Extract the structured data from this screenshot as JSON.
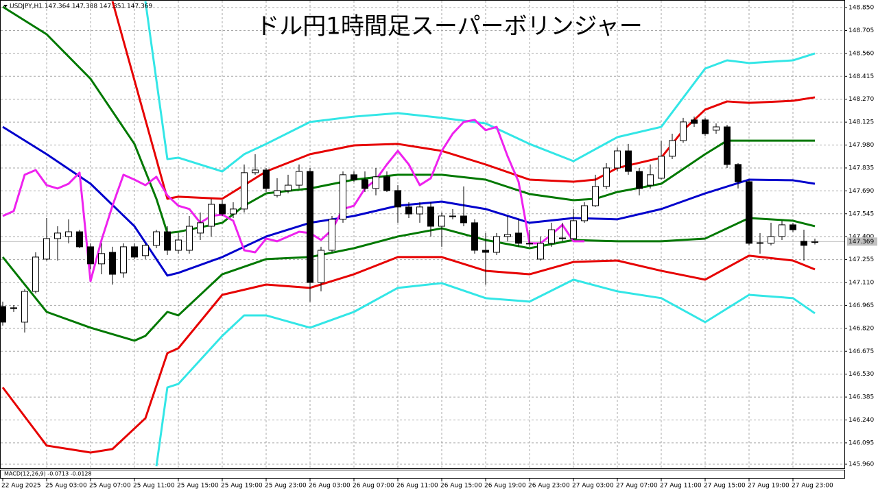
{
  "chart_data": {
    "type": "candlestick",
    "title": "ドル円1時間足スーパーボリンジャー",
    "header": "USDJPY,H1  147.364 147.388 147.351 147.369",
    "indicator_label": "MACD(12,26,9) -0.0713 -0.0128",
    "ylim": [
      145.934,
      148.898
    ],
    "yticks": [
      {
        "value": 148.85,
        "label": "148.850"
      },
      {
        "value": 148.705,
        "label": "148.705"
      },
      {
        "value": 148.56,
        "label": "148.560"
      },
      {
        "value": 148.415,
        "label": "148.415"
      },
      {
        "value": 148.27,
        "label": "148.270"
      },
      {
        "value": 148.125,
        "label": "148.125"
      },
      {
        "value": 147.98,
        "label": "147.980"
      },
      {
        "value": 147.835,
        "label": "147.835"
      },
      {
        "value": 147.69,
        "label": "147.690"
      },
      {
        "value": 147.545,
        "label": "147.545"
      },
      {
        "value": 147.4,
        "label": "147.400"
      },
      {
        "value": 147.255,
        "label": "147.255"
      },
      {
        "value": 147.11,
        "label": "147.110"
      },
      {
        "value": 146.965,
        "label": "146.965"
      },
      {
        "value": 146.82,
        "label": "146.820"
      },
      {
        "value": 146.675,
        "label": "146.675"
      },
      {
        "value": 146.53,
        "label": "146.530"
      },
      {
        "value": 146.385,
        "label": "146.385"
      },
      {
        "value": 146.24,
        "label": "146.240"
      },
      {
        "value": 146.095,
        "label": "146.095"
      },
      {
        "value": 145.96,
        "label": "145.960"
      }
    ],
    "grid": true,
    "categories": [
      "22 Aug 2025",
      null,
      null,
      null,
      "25 Aug 03:00",
      null,
      null,
      null,
      "25 Aug 07:00",
      null,
      null,
      null,
      "25 Aug 11:00",
      null,
      null,
      null,
      "25 Aug 15:00",
      null,
      null,
      null,
      "25 Aug 19:00",
      null,
      null,
      null,
      "25 Aug 23:00",
      null,
      null,
      null,
      "26 Aug 03:00",
      null,
      null,
      null,
      "26 Aug 07:00",
      null,
      null,
      null,
      "26 Aug 11:00",
      null,
      null,
      null,
      "26 Aug 15:00",
      null,
      null,
      null,
      "26 Aug 19:00",
      null,
      null,
      null,
      "26 Aug 23:00",
      null,
      null,
      null,
      "27 Aug 03:00",
      null,
      null,
      null,
      "27 Aug 07:00",
      null,
      null,
      null,
      "27 Aug 11:00",
      null,
      null,
      null,
      "27 Aug 15:00",
      null,
      null,
      null,
      "27 Aug 19:00",
      null,
      null,
      null,
      "27 Aug 23:00",
      null,
      null
    ],
    "open": [
      146.958,
      146.95,
      146.859,
      147.054,
      147.258,
      147.388,
      147.401,
      147.431,
      147.336,
      147.228,
      147.301,
      147.171,
      147.336,
      147.28,
      147.345,
      147.431,
      147.314,
      147.314,
      147.423,
      147.466,
      147.605,
      147.544,
      147.575,
      147.805,
      147.822,
      147.661,
      147.692,
      147.726,
      147.813,
      147.11,
      147.314,
      147.51,
      147.792,
      147.761,
      147.705,
      147.779,
      147.692,
      147.588,
      147.544,
      147.588,
      147.466,
      147.531,
      147.531,
      147.488,
      147.314,
      147.301,
      147.401,
      147.423,
      147.358,
      147.258,
      147.358,
      147.388,
      147.388,
      147.501,
      147.596,
      147.718,
      147.835,
      147.943,
      147.813,
      147.726,
      147.77,
      147.909,
      148.008,
      148.139,
      148.139,
      148.074,
      148.095,
      147.857,
      147.748,
      147.358,
      147.358,
      147.401,
      147.475,
      147.371,
      147.364
    ],
    "high": [
      146.989,
      146.967,
      147.067,
      147.301,
      147.518,
      147.466,
      147.51,
      147.444,
      147.358,
      147.358,
      147.336,
      147.358,
      147.358,
      147.358,
      147.444,
      147.466,
      147.423,
      147.531,
      147.553,
      147.64,
      147.631,
      147.618,
      147.857,
      147.922,
      147.835,
      147.77,
      147.792,
      147.857,
      147.835,
      147.336,
      147.531,
      147.813,
      147.813,
      147.813,
      147.835,
      147.813,
      147.726,
      147.618,
      147.618,
      147.618,
      147.553,
      147.575,
      147.718,
      147.51,
      147.423,
      147.423,
      147.531,
      147.51,
      147.444,
      147.401,
      147.488,
      147.488,
      147.575,
      147.618,
      147.792,
      147.865,
      147.965,
      147.987,
      147.835,
      147.857,
      148.008,
      148.052,
      148.152,
      148.16,
      148.152,
      148.117,
      148.108,
      147.865,
      147.761,
      147.423,
      147.488,
      147.501,
      147.488,
      147.444,
      147.388
    ],
    "low": [
      146.837,
      146.924,
      146.794,
      147.041,
      147.249,
      147.249,
      147.358,
      147.327,
      147.197,
      147.162,
      147.097,
      147.141,
      147.258,
      147.258,
      147.327,
      147.284,
      147.293,
      147.293,
      147.379,
      147.401,
      147.531,
      147.518,
      147.553,
      147.792,
      147.683,
      147.648,
      147.674,
      147.705,
      146.989,
      147.054,
      147.301,
      147.488,
      147.748,
      147.683,
      147.661,
      147.683,
      147.488,
      147.518,
      147.488,
      147.401,
      147.336,
      147.51,
      147.466,
      147.293,
      147.097,
      147.284,
      147.371,
      147.336,
      147.336,
      147.249,
      147.336,
      147.371,
      147.379,
      147.488,
      147.588,
      147.7,
      147.813,
      147.792,
      147.661,
      147.705,
      147.761,
      147.891,
      147.995,
      148.095,
      148.039,
      148.052,
      147.835,
      147.705,
      147.345,
      147.293,
      147.345,
      147.379,
      147.431,
      147.249,
      147.351
    ],
    "close": [
      146.859,
      146.945,
      147.054,
      147.271,
      147.388,
      147.423,
      147.431,
      147.336,
      147.228,
      147.293,
      147.162,
      147.336,
      147.271,
      147.345,
      147.431,
      147.314,
      147.379,
      147.466,
      147.488,
      147.605,
      147.544,
      147.575,
      147.805,
      147.822,
      147.705,
      147.692,
      147.726,
      147.813,
      147.11,
      147.314,
      147.51,
      147.792,
      147.761,
      147.705,
      147.779,
      147.692,
      147.588,
      147.544,
      147.588,
      147.466,
      147.531,
      147.527,
      147.488,
      147.314,
      147.301,
      147.401,
      147.414,
      147.358,
      147.358,
      147.358,
      147.444,
      147.392,
      147.501,
      147.596,
      147.718,
      147.835,
      147.943,
      147.813,
      147.705,
      147.792,
      147.909,
      148.008,
      148.126,
      148.117,
      148.052,
      148.095,
      147.857,
      147.748,
      147.358,
      147.362,
      147.401,
      147.475,
      147.444,
      147.345,
      147.369
    ],
    "lines": [
      {
        "color": "#0000cc",
        "x": [
          0,
          4,
          8,
          12,
          15,
          16,
          20,
          24,
          28,
          32,
          36,
          40,
          44,
          48,
          52,
          56,
          60,
          64,
          68,
          72,
          74
        ],
        "values": [
          148.095,
          147.922,
          147.735,
          147.466,
          147.154,
          147.171,
          147.271,
          147.401,
          147.488,
          147.531,
          147.596,
          147.622,
          147.575,
          147.488,
          147.518,
          147.51,
          147.575,
          147.674,
          147.761,
          147.757,
          147.735
        ]
      },
      {
        "color": "#007800",
        "x": [
          0,
          4,
          8,
          12,
          14,
          15,
          16,
          20,
          22,
          24,
          28,
          32,
          36,
          40,
          44,
          48,
          52,
          54,
          56,
          60,
          64,
          66,
          68,
          74
        ],
        "values": [
          148.855,
          148.681,
          148.399,
          147.987,
          147.64,
          147.423,
          147.431,
          147.488,
          147.596,
          147.674,
          147.705,
          147.761,
          147.792,
          147.792,
          147.761,
          147.67,
          147.631,
          147.64,
          147.683,
          147.735,
          147.922,
          148.008,
          148.008,
          148.008
        ]
      },
      {
        "color": "#007800",
        "x": [
          0,
          4,
          8,
          12,
          13,
          15,
          16,
          20,
          24,
          28,
          32,
          36,
          40,
          44,
          48,
          52,
          56,
          60,
          64,
          68,
          72,
          74
        ],
        "values": [
          147.271,
          146.924,
          146.824,
          146.742,
          146.772,
          146.924,
          146.902,
          147.162,
          147.258,
          147.271,
          147.327,
          147.401,
          147.453,
          147.379,
          147.327,
          147.379,
          147.371,
          147.371,
          147.388,
          147.518,
          147.501,
          147.466
        ]
      },
      {
        "color": "#e60000",
        "x": [
          10,
          15,
          16,
          20,
          22,
          24,
          28,
          32,
          36,
          40,
          44,
          48,
          52,
          54,
          56,
          60,
          62,
          64,
          66,
          68,
          72,
          74
        ],
        "values": [
          148.89,
          147.64,
          147.653,
          147.64,
          147.726,
          147.813,
          147.922,
          147.978,
          147.987,
          147.943,
          147.857,
          147.761,
          147.748,
          147.761,
          147.835,
          147.9,
          148.074,
          148.204,
          148.256,
          148.247,
          148.26,
          148.282
        ]
      },
      {
        "color": "#e60000",
        "x": [
          0,
          4,
          8,
          10,
          13,
          15,
          16,
          20,
          24,
          28,
          32,
          36,
          40,
          44,
          48,
          52,
          56,
          60,
          64,
          68,
          72,
          74
        ],
        "values": [
          146.446,
          146.078,
          146.034,
          146.056,
          146.251,
          146.663,
          146.694,
          147.032,
          147.097,
          147.076,
          147.162,
          147.271,
          147.271,
          147.184,
          147.162,
          147.24,
          147.249,
          147.184,
          147.128,
          147.28,
          147.249,
          147.193
        ]
      },
      {
        "color": "#33e6e6",
        "x": [
          13,
          15,
          16,
          20,
          22,
          24,
          28,
          32,
          36,
          40,
          44,
          48,
          52,
          56,
          60,
          64,
          66,
          68,
          72,
          74
        ],
        "values": [
          148.89,
          147.891,
          147.9,
          147.813,
          147.922,
          147.987,
          148.126,
          148.16,
          148.182,
          148.152,
          148.117,
          147.987,
          147.878,
          148.03,
          148.095,
          148.464,
          148.516,
          148.499,
          148.516,
          148.56
        ]
      },
      {
        "color": "#33e6e6",
        "x": [
          14,
          15,
          16,
          20,
          22,
          24,
          28,
          32,
          36,
          40,
          44,
          48,
          52,
          56,
          60,
          64,
          68,
          72,
          74
        ],
        "values": [
          145.947,
          146.446,
          146.468,
          146.772,
          146.902,
          146.902,
          146.824,
          146.924,
          147.076,
          147.106,
          147.011,
          146.989,
          147.128,
          147.054,
          147.011,
          146.859,
          147.032,
          147.011,
          146.915
        ]
      },
      {
        "color": "#ee22ee",
        "x": [
          0,
          1,
          2,
          3,
          4,
          5,
          6,
          7,
          8,
          9,
          10,
          11,
          12,
          13,
          14,
          15,
          16,
          17,
          18,
          19,
          20,
          21,
          22,
          23,
          24,
          25,
          26,
          27,
          28,
          29,
          30,
          31,
          32,
          33,
          34,
          35,
          36,
          37,
          38,
          39,
          40,
          41,
          42,
          43,
          44,
          45,
          46,
          47,
          48,
          49,
          50,
          51,
          52,
          53
        ],
        "values": [
          147.531,
          147.562,
          147.792,
          147.822,
          147.726,
          147.705,
          147.735,
          147.805,
          147.119,
          147.379,
          147.596,
          147.792,
          147.761,
          147.726,
          147.779,
          147.661,
          147.596,
          147.575,
          147.488,
          147.531,
          147.54,
          147.501,
          147.314,
          147.301,
          147.388,
          147.371,
          147.401,
          147.431,
          147.423,
          147.379,
          147.444,
          147.575,
          147.596,
          147.705,
          147.761,
          147.857,
          147.943,
          147.857,
          147.726,
          147.77,
          147.943,
          148.052,
          148.126,
          148.139,
          148.074,
          148.095,
          147.909,
          147.748,
          147.358,
          147.358,
          147.414,
          147.475,
          147.371,
          147.371
        ]
      }
    ]
  }
}
